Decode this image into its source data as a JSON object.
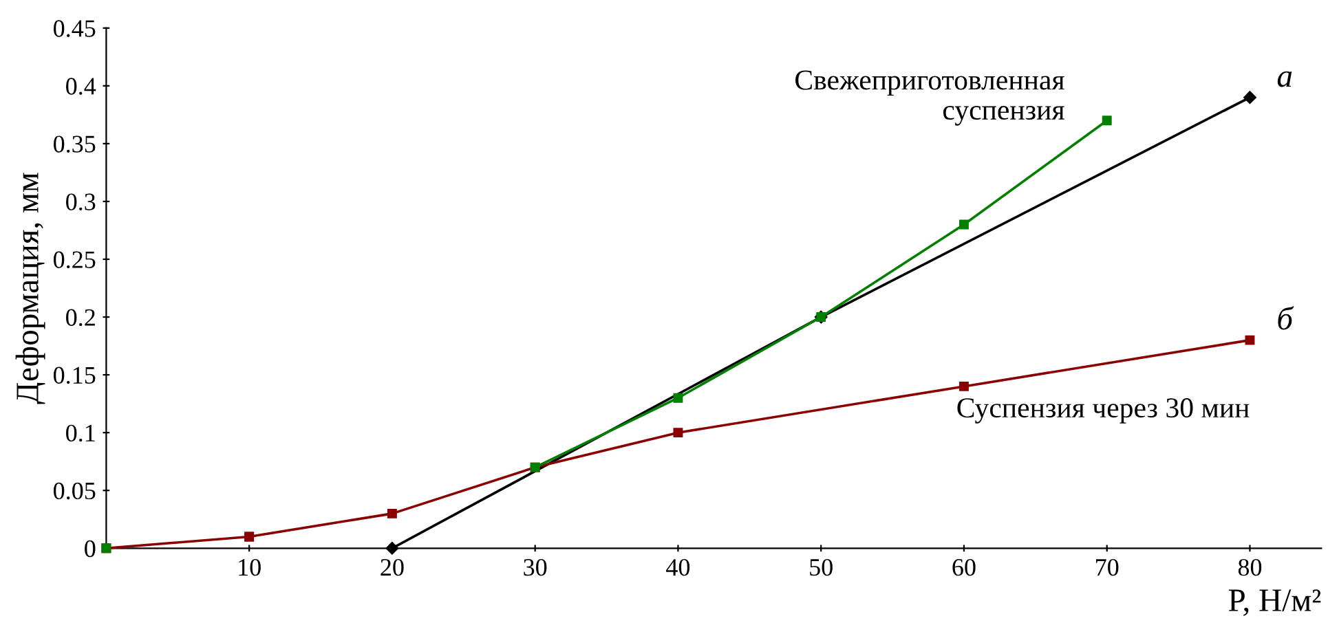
{
  "chart_data": {
    "type": "line",
    "xlabel": "P, Н/м²",
    "ylabel": "Деформация, мм",
    "series": [
      {
        "name": "Свежеприготовленная\nсуспензия",
        "color": "#008000",
        "marker": "square",
        "x": [
          0,
          10,
          20,
          30,
          40,
          50,
          60,
          70
        ],
        "values": [
          0,
          null,
          null,
          0.07,
          0.13,
          0.2,
          0.28,
          0.37
        ]
      },
      {
        "name": "Суспензия через 30 мин",
        "color": "#8b0000",
        "marker": "square",
        "x": [
          0,
          10,
          20,
          30,
          40,
          60,
          80
        ],
        "values": [
          0,
          0.01,
          0.03,
          0.07,
          0.1,
          0.14,
          0.18
        ]
      },
      {
        "color": "#000000",
        "marker": "diamond",
        "x": [
          20,
          50,
          80
        ],
        "values": [
          0,
          0.2,
          0.39
        ]
      }
    ],
    "annotations": [
      {
        "text": "а",
        "x": 80,
        "y": 0.39
      },
      {
        "text": "б",
        "x": 80,
        "y": 0.18
      }
    ],
    "xlim": [
      0,
      85
    ],
    "ylim": [
      0,
      0.45
    ],
    "xticks": [
      10,
      20,
      30,
      40,
      50,
      60,
      70,
      80
    ],
    "yticks": [
      {
        "value": 0,
        "label": "0"
      },
      0.05,
      0.1,
      0.15,
      0.2,
      0.25,
      0.3,
      0.35,
      0.4,
      0.45
    ],
    "grid": false,
    "legend": false,
    "line_style": "solid"
  }
}
